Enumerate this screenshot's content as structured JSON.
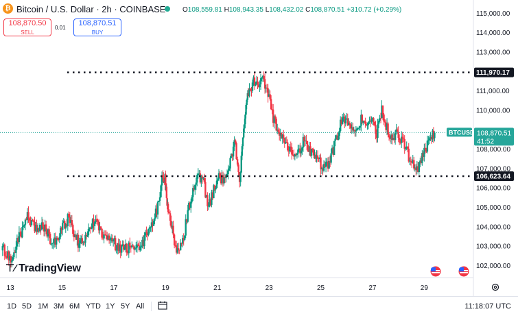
{
  "header": {
    "title": "Bitcoin / U.S. Dollar · 2h · COINBASE",
    "ohlc": {
      "o_label": "O",
      "o": "108,559.81",
      "h_label": "H",
      "h": "108,943.35",
      "l_label": "L",
      "l": "108,432.02",
      "c_label": "C",
      "c": "108,870.51",
      "change": "+310.72 (+0.29%)"
    }
  },
  "trade": {
    "sell_price": "108,870.50",
    "sell_label": "SELL",
    "spread": "0.01",
    "buy_price": "108,870.51",
    "buy_label": "BUY"
  },
  "logo_text": "TradingView",
  "toolbar": {
    "ranges": [
      "1D",
      "5D",
      "1M",
      "3M",
      "6M",
      "YTD",
      "1Y",
      "5Y",
      "All"
    ],
    "clock": "11:18:07 UTC"
  },
  "colors": {
    "up": "#089981",
    "down": "#f23645",
    "accent": "#2962ff",
    "price_tag": "#26a69a"
  },
  "chart_data": {
    "type": "candlestick",
    "symbol": "BTCUSD",
    "y_ticks": [
      "102,000.00",
      "103,000.00",
      "104,000.00",
      "105,000.00",
      "106,000.00",
      "107,000.00",
      "108,000.00",
      "110,000.00",
      "111,000.00",
      "113,000.00",
      "114,000.00",
      "115,000.00"
    ],
    "x_ticks": [
      "13",
      "15",
      "17",
      "19",
      "21",
      "23",
      "25",
      "27",
      "29"
    ],
    "x_range": [
      12.6,
      30.9
    ],
    "ylim": [
      101400,
      115700
    ],
    "close_series": [
      [
        12.7,
        102950
      ],
      [
        12.9,
        102600
      ],
      [
        13.1,
        102200
      ],
      [
        13.3,
        103200
      ],
      [
        13.5,
        103900
      ],
      [
        13.7,
        104600
      ],
      [
        13.9,
        104100
      ],
      [
        14.1,
        103800
      ],
      [
        14.3,
        104000
      ],
      [
        14.5,
        103600
      ],
      [
        14.7,
        103100
      ],
      [
        14.9,
        103500
      ],
      [
        15.1,
        104100
      ],
      [
        15.3,
        104500
      ],
      [
        15.5,
        103700
      ],
      [
        15.7,
        103100
      ],
      [
        15.9,
        103400
      ],
      [
        16.1,
        104000
      ],
      [
        16.3,
        104300
      ],
      [
        16.5,
        103900
      ],
      [
        16.7,
        103300
      ],
      [
        16.9,
        103500
      ],
      [
        17.1,
        103100
      ],
      [
        17.3,
        102900
      ],
      [
        17.5,
        103000
      ],
      [
        17.7,
        102850
      ],
      [
        17.9,
        103000
      ],
      [
        18.1,
        103050
      ],
      [
        18.3,
        103600
      ],
      [
        18.5,
        104100
      ],
      [
        18.7,
        104900
      ],
      [
        18.9,
        106400
      ],
      [
        19.0,
        106500
      ],
      [
        19.1,
        105000
      ],
      [
        19.3,
        103800
      ],
      [
        19.5,
        102700
      ],
      [
        19.7,
        103200
      ],
      [
        19.9,
        104800
      ],
      [
        20.1,
        105900
      ],
      [
        20.3,
        106600
      ],
      [
        20.5,
        106300
      ],
      [
        20.7,
        105100
      ],
      [
        20.9,
        105900
      ],
      [
        21.1,
        106700
      ],
      [
        21.3,
        106300
      ],
      [
        21.5,
        107200
      ],
      [
        21.7,
        108400
      ],
      [
        21.9,
        106500
      ],
      [
        22.05,
        109200
      ],
      [
        22.2,
        110600
      ],
      [
        22.4,
        111500
      ],
      [
        22.6,
        111150
      ],
      [
        22.8,
        111800
      ],
      [
        23.0,
        110800
      ],
      [
        23.2,
        109600
      ],
      [
        23.4,
        108900
      ],
      [
        23.6,
        108400
      ],
      [
        23.8,
        108100
      ],
      [
        24.0,
        107500
      ],
      [
        24.2,
        107800
      ],
      [
        24.4,
        108500
      ],
      [
        24.6,
        108000
      ],
      [
        24.8,
        107600
      ],
      [
        25.0,
        107300
      ],
      [
        25.2,
        107000
      ],
      [
        25.4,
        107400
      ],
      [
        25.6,
        108400
      ],
      [
        25.8,
        109300
      ],
      [
        26.0,
        109600
      ],
      [
        26.2,
        109100
      ],
      [
        26.4,
        108700
      ],
      [
        26.6,
        109700
      ],
      [
        26.8,
        109200
      ],
      [
        27.0,
        109500
      ],
      [
        27.2,
        108800
      ],
      [
        27.4,
        110100
      ],
      [
        27.6,
        109100
      ],
      [
        27.8,
        108600
      ],
      [
        28.0,
        108900
      ],
      [
        28.2,
        108400
      ],
      [
        28.4,
        107800
      ],
      [
        28.6,
        107200
      ],
      [
        28.8,
        107000
      ],
      [
        29.0,
        107700
      ],
      [
        29.2,
        108300
      ],
      [
        29.4,
        108870
      ]
    ],
    "horizontal_levels": [
      {
        "value": 111970.17,
        "label": "111,970.17"
      },
      {
        "value": 106623.64,
        "label": "106,623.64"
      }
    ],
    "last_price": {
      "value": 108870.51,
      "label": "108,870.51",
      "countdown": "41:52",
      "symbol_tag": "BTCUSD"
    }
  }
}
